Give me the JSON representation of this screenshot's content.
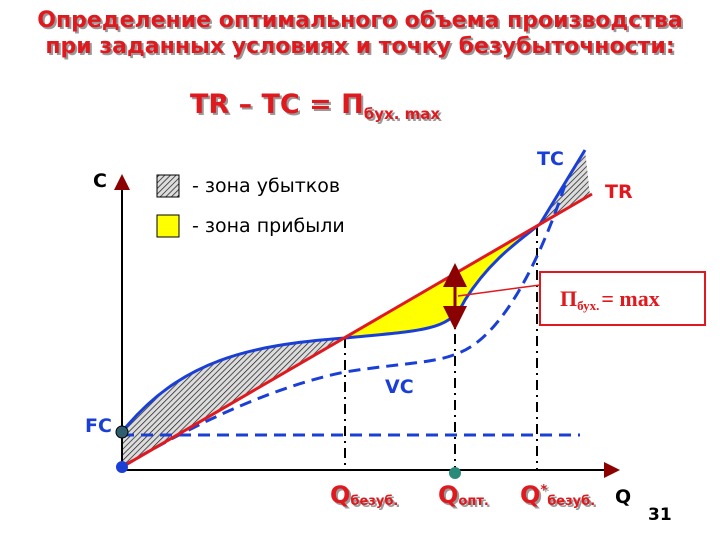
{
  "title": "Определение оптимального объема производства при заданных условиях и точку безубыточности:",
  "formula": {
    "main": "TR – TC = П",
    "sub": "бух. max"
  },
  "axes": {
    "y": "C",
    "x": "Q"
  },
  "curves": {
    "tc": "TC",
    "tr": "TR",
    "vc": "VC",
    "fc": "FC"
  },
  "legend": [
    {
      "label": "- зона убытков"
    },
    {
      "label": "- зона прибыли"
    }
  ],
  "profit_box": {
    "main": "П",
    "sub": "бух.",
    "rest": "= max"
  },
  "q_labels": [
    {
      "main": "Q",
      "sub": "безуб."
    },
    {
      "main": "Q",
      "sub": "опт."
    },
    {
      "main": "Q",
      "sup": "*",
      "sub": "безуб."
    }
  ],
  "page_number": "31"
}
